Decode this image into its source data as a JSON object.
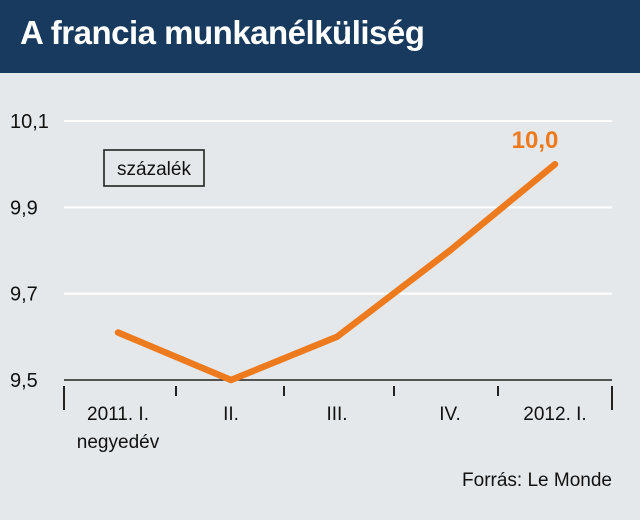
{
  "title": "A francia munkanélküliség",
  "source": "Forrás: Le Monde",
  "unit_label": "százalék",
  "colors": {
    "header_bg": "#173a5e",
    "line": "#ee7a1e",
    "grid": "#ffffff",
    "background": "#e4e8eb"
  },
  "chart_data": {
    "type": "line",
    "title": "A francia munkanélküliség",
    "ylabel": "százalék",
    "categories": [
      [
        "2011. I.",
        "negyedév"
      ],
      [
        "II."
      ],
      [
        "III."
      ],
      [
        "IV."
      ],
      [
        "2012. I."
      ]
    ],
    "values": [
      9.61,
      9.5,
      9.6,
      9.8,
      10.0
    ],
    "yticks": [
      "10,1",
      "9,9",
      "9,7",
      "9,5"
    ],
    "ytick_values": [
      10.1,
      9.9,
      9.7,
      9.5
    ],
    "ylim": [
      9.5,
      10.1
    ],
    "grid": true,
    "data_labels": [
      "",
      "",
      "",
      "",
      "10,0"
    ]
  }
}
